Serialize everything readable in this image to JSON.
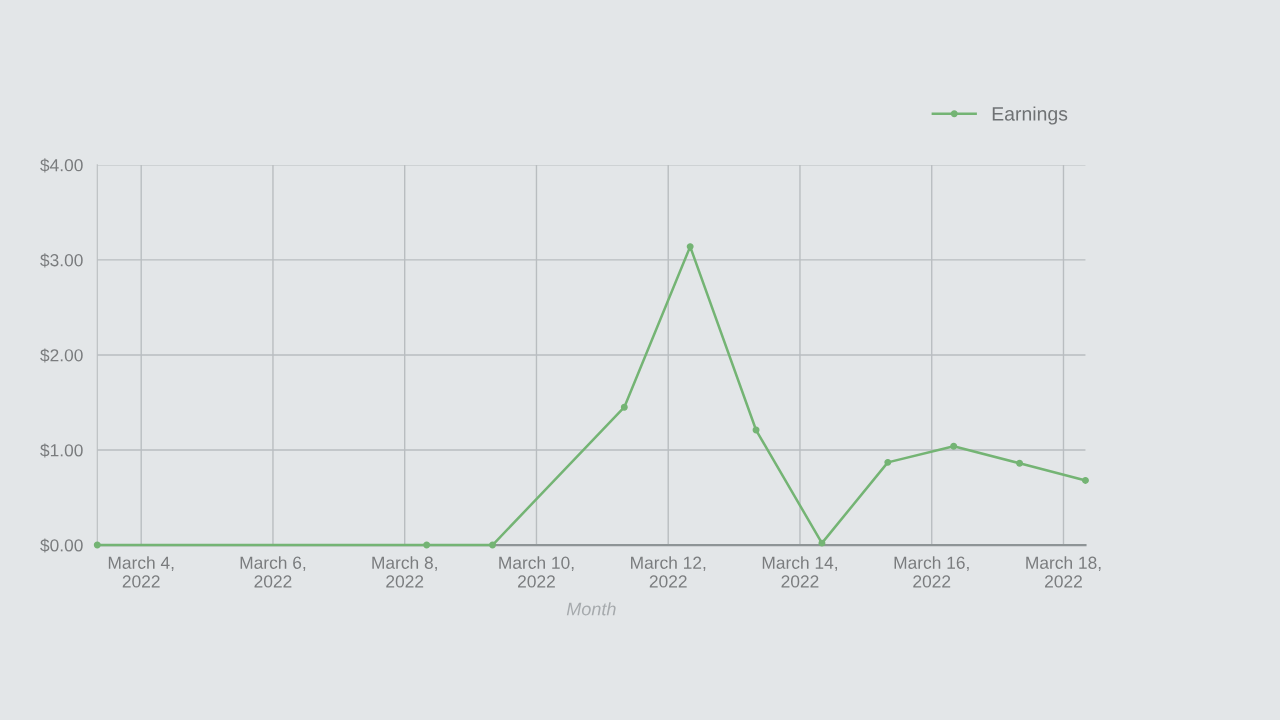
{
  "chart_data": {
    "type": "line",
    "xlabel": "Month",
    "x": [
      "2022-03-03T08:00",
      "2022-03-08T08:00",
      "2022-03-09T08:00",
      "2022-03-11T08:00",
      "2022-03-12T08:00",
      "2022-03-13T08:00",
      "2022-03-14T08:00",
      "2022-03-15T08:00",
      "2022-03-16T08:00",
      "2022-03-17T08:00",
      "2022-03-18T08:00"
    ],
    "series": [
      {
        "name": "Earnings",
        "color": "#74b474",
        "values": [
          0,
          0,
          0,
          1.45,
          3.14,
          1.21,
          0.02,
          0.87,
          1.04,
          0.86,
          0.68
        ]
      }
    ],
    "xlim": [
      "2022-03-03T08:00",
      "2022-03-18T08:00"
    ],
    "xticks": [
      {
        "value": "2022-03-04",
        "label": "March 4,\n2022"
      },
      {
        "value": "2022-03-06",
        "label": "March 6,\n2022"
      },
      {
        "value": "2022-03-08",
        "label": "March 8,\n2022"
      },
      {
        "value": "2022-03-10",
        "label": "March 10,\n2022"
      },
      {
        "value": "2022-03-12",
        "label": "March 12,\n2022"
      },
      {
        "value": "2022-03-14",
        "label": "March 14,\n2022"
      },
      {
        "value": "2022-03-16",
        "label": "March 16,\n2022"
      },
      {
        "value": "2022-03-18",
        "label": "March 18,\n2022"
      }
    ],
    "ylim": [
      0,
      4
    ],
    "yticks": [
      {
        "value": 0,
        "label": "$0.00"
      },
      {
        "value": 1,
        "label": "$1.00"
      },
      {
        "value": 2,
        "label": "$2.00"
      },
      {
        "value": 3,
        "label": "$3.00"
      },
      {
        "value": 4,
        "label": "$4.00"
      }
    ],
    "grid": true,
    "legend": "top right",
    "marker": "circle",
    "line_style": "solid"
  }
}
